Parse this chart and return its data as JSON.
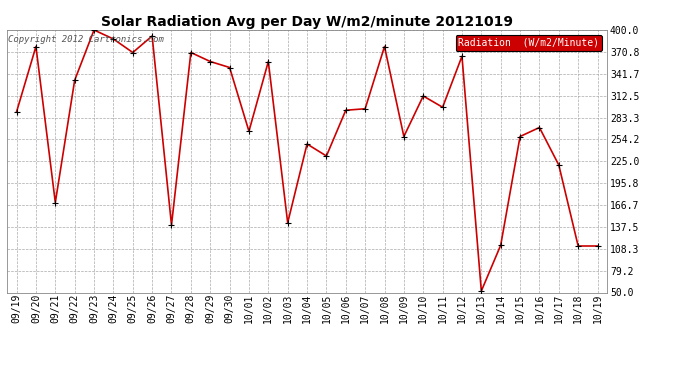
{
  "title": "Solar Radiation Avg per Day W/m2/minute 20121019",
  "copyright": "Copyright 2012 Cartronics.com",
  "legend_label": "Radiation  (W/m2/Minute)",
  "dates": [
    "09/19",
    "09/20",
    "09/21",
    "09/22",
    "09/23",
    "09/24",
    "09/25",
    "09/26",
    "09/27",
    "09/28",
    "09/29",
    "09/30",
    "10/01",
    "10/02",
    "10/03",
    "10/04",
    "10/05",
    "10/06",
    "10/07",
    "10/08",
    "10/09",
    "10/10",
    "10/11",
    "10/12",
    "10/13",
    "10/14",
    "10/15",
    "10/16",
    "10/17",
    "10/18",
    "10/19"
  ],
  "values": [
    291,
    378,
    170,
    333,
    400,
    388,
    370,
    392,
    140,
    370,
    358,
    350,
    265,
    358,
    143,
    248,
    232,
    293,
    295,
    378,
    258,
    312,
    297,
    365,
    52,
    113,
    258,
    270,
    220,
    112,
    112
  ],
  "ylim": [
    50.0,
    400.0
  ],
  "ytick_values": [
    50.0,
    79.2,
    108.3,
    137.5,
    166.7,
    195.8,
    225.0,
    254.2,
    283.3,
    312.5,
    341.7,
    370.8,
    400.0
  ],
  "ytick_labels": [
    "50.0",
    "79.2",
    "108.3",
    "137.5",
    "166.7",
    "195.8",
    "225.0",
    "254.2",
    "283.3",
    "312.5",
    "341.7",
    "370.8",
    "400.0"
  ],
  "line_color": "#cc0000",
  "marker_color": "#000000",
  "bg_color": "#ffffff",
  "plot_bg_color": "#ffffff",
  "grid_color": "#aaaaaa",
  "title_fontsize": 10,
  "tick_fontsize": 7,
  "copyright_fontsize": 6.5,
  "legend_bg": "#cc0000",
  "legend_text_color": "#ffffff",
  "legend_fontsize": 7
}
